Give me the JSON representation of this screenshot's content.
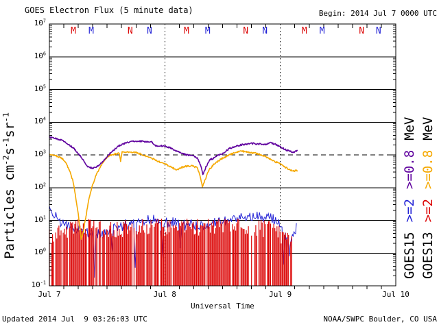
{
  "footer": {
    "updated": "Updated 2014 Jul  9 03:26:03 UTC",
    "source": "NOAA/SWPC Boulder, CO USA"
  },
  "colors": {
    "red": "#dc0707",
    "blue": "#2424d6",
    "orange": "#f5a800",
    "purple": "#5f009e",
    "black": "#000000",
    "background": "#ffffff"
  },
  "chart_data": {
    "type": "line",
    "title": "GOES Electron Flux (5 minute data)",
    "begin_label": "Begin: 2014 Jul 7 0000 UTC",
    "xlabel": "Universal Time",
    "ylabel_parts": [
      {
        "t": "Particles cm",
        "sup": false
      },
      {
        "t": "-2",
        "sup": true
      },
      {
        "t": "s",
        "sup": false
      },
      {
        "t": "-1",
        "sup": true
      },
      {
        "t": "sr",
        "sup": false
      },
      {
        "t": "-1",
        "sup": true
      }
    ],
    "y_scale": "log10",
    "y_base": "10",
    "y_exponents": [
      "7",
      "6",
      "5",
      "4",
      "3",
      "2",
      "1",
      "0",
      "-1"
    ],
    "y_range_log": [
      -1,
      7
    ],
    "x_range_hours": [
      0,
      72
    ],
    "x_tick_step_hours": 3,
    "x_ticks": [
      {
        "label": "Jul 7",
        "hour": 0
      },
      {
        "label": "Jul 8",
        "hour": 24
      },
      {
        "label": "Jul 9",
        "hour": 48
      },
      {
        "label": "Jul 10",
        "hour": 72
      }
    ],
    "grid": "solid horizontal lines each decade",
    "threshold_log": 3,
    "day_boundary_hours": [
      24,
      48
    ],
    "data_end_hour": 51.5,
    "markers": [
      {
        "label": "M",
        "sat": "GOES13",
        "hour": 5.0
      },
      {
        "label": "M",
        "sat": "GOES15",
        "hour": 8.7
      },
      {
        "label": "N",
        "sat": "GOES13",
        "hour": 16.8
      },
      {
        "label": "N",
        "sat": "GOES15",
        "hour": 20.8
      },
      {
        "label": "M",
        "sat": "GOES13",
        "hour": 28.5
      },
      {
        "label": "M",
        "sat": "GOES15",
        "hour": 32.9
      },
      {
        "label": "N",
        "sat": "GOES13",
        "hour": 40.8
      },
      {
        "label": "N",
        "sat": "GOES15",
        "hour": 44.8
      },
      {
        "label": "M",
        "sat": "GOES13",
        "hour": 53.0
      },
      {
        "label": "M",
        "sat": "GOES15",
        "hour": 56.7
      },
      {
        "label": "N",
        "sat": "GOES13",
        "hour": 64.9
      },
      {
        "label": "N",
        "sat": "GOES15",
        "hour": 68.4
      }
    ],
    "legend": {
      "columns": [
        {
          "items": [
            {
              "text": "GOES15",
              "color_key": "black"
            },
            {
              "text": ">=2",
              "color_key": "blue"
            },
            {
              "text": ">=0.8",
              "color_key": "purple"
            },
            {
              "text": "MeV",
              "color_key": "black"
            }
          ]
        },
        {
          "items": [
            {
              "text": "GOES13",
              "color_key": "black"
            },
            {
              "text": ">=2",
              "color_key": "red"
            },
            {
              "text": ">=0.8",
              "color_key": "orange"
            },
            {
              "text": "MeV",
              "color_key": "black"
            }
          ]
        }
      ]
    },
    "series": [
      {
        "name": "GOES13 >=2 MeV",
        "color_key": "red",
        "style": "bars",
        "note": "hours vs log10 flux, envelope of noisy comb bars rising from below 1e-1",
        "baseline_log": -1,
        "step_hours": 0.22,
        "gap_probability": 0.12,
        "noise_log": 0.55,
        "end_hour": 50.4,
        "envelope_log": [
          [
            0,
            0.55
          ],
          [
            1.9,
            0.62
          ],
          [
            4.0,
            0.72
          ],
          [
            6.1,
            0.8
          ],
          [
            8.3,
            0.83
          ],
          [
            10.4,
            0.75
          ],
          [
            12.6,
            0.7
          ],
          [
            14.7,
            0.75
          ],
          [
            16.8,
            0.8
          ],
          [
            19.0,
            0.84
          ],
          [
            21.1,
            0.84
          ],
          [
            23.2,
            0.8
          ],
          [
            25.4,
            0.77
          ],
          [
            27.5,
            0.78
          ],
          [
            29.7,
            0.81
          ],
          [
            31.8,
            0.8
          ],
          [
            33.9,
            0.86
          ],
          [
            36.1,
            0.9
          ],
          [
            38.2,
            0.87
          ],
          [
            40.4,
            0.83
          ],
          [
            42.5,
            0.8
          ],
          [
            44.5,
            0.75
          ],
          [
            46.1,
            0.7
          ],
          [
            47.5,
            0.6
          ],
          [
            48.5,
            0.5
          ],
          [
            49.3,
            0.42
          ],
          [
            50.2,
            0.35
          ]
        ]
      },
      {
        "name": "GOES15 >=2 MeV",
        "color_key": "blue",
        "style": "noisy-line",
        "note": "hours vs log10 flux, center of noisy band",
        "step_hours": 0.1667,
        "noise_log": 0.2,
        "end_hour": 51.5,
        "envelope_log": [
          [
            0,
            1.42
          ],
          [
            0.6,
            1.25
          ],
          [
            1.4,
            1.05
          ],
          [
            2.6,
            0.93
          ],
          [
            4.0,
            0.85
          ],
          [
            5.7,
            0.74
          ],
          [
            7.4,
            0.66
          ],
          [
            9.1,
            0.58
          ],
          [
            10.6,
            0.6
          ],
          [
            12.3,
            0.68
          ],
          [
            14.0,
            0.78
          ],
          [
            15.7,
            0.86
          ],
          [
            17.4,
            0.95
          ],
          [
            19.1,
            1.02
          ],
          [
            20.8,
            1.05
          ],
          [
            22.5,
            1.0
          ],
          [
            24.2,
            0.95
          ],
          [
            26.2,
            0.91
          ],
          [
            28.2,
            0.88
          ],
          [
            30.2,
            0.85
          ],
          [
            31.9,
            0.84
          ],
          [
            33.7,
            0.9
          ],
          [
            35.4,
            0.94
          ],
          [
            37.4,
            1.0
          ],
          [
            39.4,
            1.03
          ],
          [
            41.4,
            1.08
          ],
          [
            43.3,
            1.12
          ],
          [
            45.1,
            1.1
          ],
          [
            46.5,
            1.04
          ],
          [
            47.6,
            0.95
          ],
          [
            48.5,
            0.75
          ],
          [
            49.3,
            0.5
          ],
          [
            50.2,
            0.42
          ],
          [
            50.9,
            0.65
          ],
          [
            51.5,
            0.88
          ]
        ],
        "dips_log": [
          [
            9.3,
            -0.75
          ],
          [
            13.0,
            0.05
          ],
          [
            17.8,
            -0.45
          ],
          [
            23.5,
            -0.15
          ],
          [
            27.1,
            0.15
          ],
          [
            48.6,
            -0.35
          ],
          [
            49.8,
            -0.1
          ]
        ]
      },
      {
        "name": "GOES13 >=0.8 MeV",
        "color_key": "orange",
        "style": "line",
        "note": "hours vs log10 flux",
        "end_hour": 51.5,
        "points_log": [
          [
            0,
            3.0
          ],
          [
            1.4,
            2.97
          ],
          [
            2.6,
            2.9
          ],
          [
            3.4,
            2.76
          ],
          [
            4.1,
            2.55
          ],
          [
            4.9,
            2.2
          ],
          [
            5.4,
            1.78
          ],
          [
            6.0,
            1.2
          ],
          [
            6.6,
            0.42
          ],
          [
            7.0,
            0.62
          ],
          [
            7.6,
            1.12
          ],
          [
            8.1,
            1.56
          ],
          [
            8.8,
            2.0
          ],
          [
            9.8,
            2.42
          ],
          [
            10.8,
            2.68
          ],
          [
            11.8,
            2.9
          ],
          [
            12.7,
            3.0
          ],
          [
            14.0,
            3.04
          ],
          [
            14.5,
            3.05
          ],
          [
            14.8,
            2.8
          ],
          [
            15.1,
            3.08
          ],
          [
            16.3,
            3.1
          ],
          [
            17.7,
            3.08
          ],
          [
            19.1,
            3.02
          ],
          [
            20.5,
            2.94
          ],
          [
            22.0,
            2.85
          ],
          [
            23.4,
            2.76
          ],
          [
            24.4,
            2.7
          ],
          [
            25.5,
            2.62
          ],
          [
            26.4,
            2.54
          ],
          [
            27.2,
            2.6
          ],
          [
            28.5,
            2.66
          ],
          [
            29.8,
            2.66
          ],
          [
            30.8,
            2.6
          ],
          [
            31.4,
            2.3
          ],
          [
            31.8,
            2.02
          ],
          [
            32.4,
            2.25
          ],
          [
            33.1,
            2.52
          ],
          [
            34.1,
            2.7
          ],
          [
            35.5,
            2.86
          ],
          [
            36.9,
            2.96
          ],
          [
            38.4,
            3.06
          ],
          [
            39.6,
            3.12
          ],
          [
            41.4,
            3.08
          ],
          [
            43.1,
            3.04
          ],
          [
            44.5,
            2.98
          ],
          [
            45.6,
            2.9
          ],
          [
            46.8,
            2.8
          ],
          [
            47.9,
            2.73
          ],
          [
            48.9,
            2.63
          ],
          [
            49.9,
            2.56
          ],
          [
            50.8,
            2.5
          ],
          [
            51.5,
            2.53
          ]
        ]
      },
      {
        "name": "GOES15 >=0.8 MeV",
        "color_key": "purple",
        "style": "line",
        "note": "hours vs log10 flux",
        "end_hour": 51.5,
        "points_log": [
          [
            0,
            3.55
          ],
          [
            1.3,
            3.5
          ],
          [
            2.6,
            3.45
          ],
          [
            4.0,
            3.32
          ],
          [
            5.1,
            3.2
          ],
          [
            6.1,
            3.02
          ],
          [
            7.0,
            2.85
          ],
          [
            8.0,
            2.63
          ],
          [
            9.1,
            2.6
          ],
          [
            10.1,
            2.66
          ],
          [
            11.1,
            2.8
          ],
          [
            12.3,
            3.0
          ],
          [
            13.4,
            3.15
          ],
          [
            14.7,
            3.3
          ],
          [
            16.1,
            3.38
          ],
          [
            17.5,
            3.41
          ],
          [
            19.7,
            3.41
          ],
          [
            21.4,
            3.39
          ],
          [
            22.1,
            3.28
          ],
          [
            24.0,
            3.27
          ],
          [
            25.4,
            3.2
          ],
          [
            26.5,
            3.12
          ],
          [
            27.5,
            3.05
          ],
          [
            28.5,
            3.0
          ],
          [
            29.9,
            2.98
          ],
          [
            30.8,
            2.9
          ],
          [
            31.4,
            2.7
          ],
          [
            31.9,
            2.4
          ],
          [
            32.5,
            2.62
          ],
          [
            33.4,
            2.85
          ],
          [
            34.7,
            2.95
          ],
          [
            36.1,
            3.06
          ],
          [
            37.5,
            3.2
          ],
          [
            38.9,
            3.28
          ],
          [
            40.4,
            3.32
          ],
          [
            42.2,
            3.35
          ],
          [
            43.6,
            3.33
          ],
          [
            45.1,
            3.32
          ],
          [
            45.9,
            3.38
          ],
          [
            46.8,
            3.33
          ],
          [
            47.9,
            3.26
          ],
          [
            48.9,
            3.17
          ],
          [
            49.9,
            3.11
          ],
          [
            50.8,
            3.09
          ],
          [
            51.5,
            3.12
          ]
        ]
      }
    ]
  }
}
